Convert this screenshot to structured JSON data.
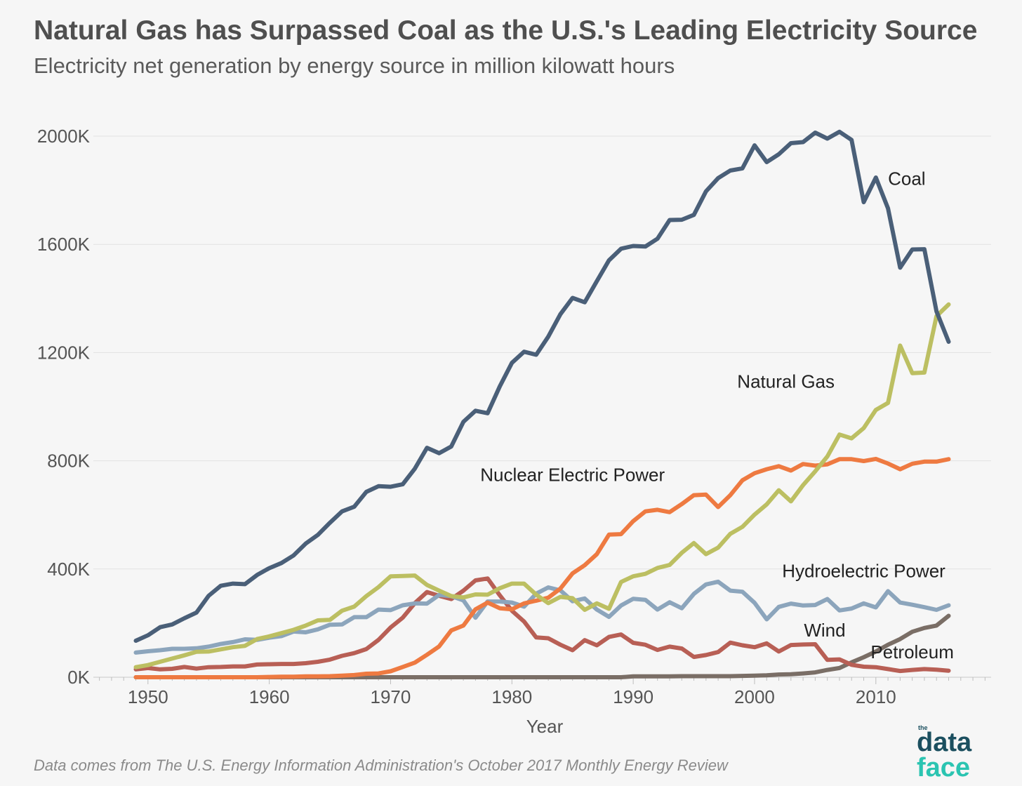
{
  "chart_data": {
    "type": "line",
    "title": "Natural Gas has Surpassed Coal as the U.S.'s Leading Electricity Source",
    "subtitle": "Electricity net generation by energy source in million kilowatt hours",
    "xlabel": "Year",
    "ylabel": "",
    "xlim": [
      1945.5,
      2019.5
    ],
    "ylim": [
      0,
      2000
    ],
    "y_unit": "K",
    "x_ticks": [
      "1950",
      "1960",
      "1970",
      "1980",
      "1990",
      "2000",
      "2010"
    ],
    "y_ticks": [
      "0K",
      "400K",
      "800K",
      "1200K",
      "1600K",
      "2000K"
    ],
    "grid": "horizontal",
    "legend": "direct labels on lines",
    "x": [
      1949,
      1950,
      1951,
      1952,
      1953,
      1954,
      1955,
      1956,
      1957,
      1958,
      1959,
      1960,
      1961,
      1962,
      1963,
      1964,
      1965,
      1966,
      1967,
      1968,
      1969,
      1970,
      1971,
      1972,
      1973,
      1974,
      1975,
      1976,
      1977,
      1978,
      1979,
      1980,
      1981,
      1982,
      1983,
      1984,
      1985,
      1986,
      1987,
      1988,
      1989,
      1990,
      1991,
      1992,
      1993,
      1994,
      1995,
      1996,
      1997,
      1998,
      1999,
      2000,
      2001,
      2002,
      2003,
      2004,
      2005,
      2006,
      2007,
      2008,
      2009,
      2010,
      2011,
      2012,
      2013,
      2014,
      2015,
      2016
    ],
    "series": [
      {
        "name": "Coal",
        "color": "#4a5f78",
        "values": [
          135,
          155,
          185,
          195,
          218,
          239,
          301,
          338,
          346,
          344,
          378,
          403,
          422,
          450,
          494,
          526,
          571,
          613,
          630,
          685,
          706,
          704,
          713,
          771,
          848,
          828,
          853,
          944,
          985,
          976,
          1075,
          1162,
          1203,
          1192,
          1259,
          1342,
          1402,
          1386,
          1464,
          1541,
          1584,
          1594,
          1592,
          1621,
          1690,
          1691,
          1709,
          1796,
          1845,
          1873,
          1881,
          1966,
          1904,
          1933,
          1974,
          1978,
          2013,
          1991,
          2016,
          1986,
          1756,
          1847,
          1733,
          1514,
          1581,
          1582,
          1352,
          1240
        ]
      },
      {
        "name": "Natural Gas",
        "color": "#bcbf62",
        "values": [
          37,
          45,
          57,
          69,
          81,
          94,
          95,
          103,
          111,
          116,
          141,
          151,
          163,
          175,
          191,
          210,
          212,
          246,
          261,
          300,
          333,
          373,
          374,
          376,
          341,
          320,
          300,
          295,
          306,
          305,
          329,
          346,
          346,
          305,
          274,
          297,
          292,
          249,
          273,
          253,
          352,
          373,
          382,
          404,
          415,
          460,
          496,
          455,
          479,
          530,
          556,
          601,
          639,
          691,
          650,
          710,
          761,
          816,
          897,
          883,
          921,
          988,
          1014,
          1226,
          1124,
          1126,
          1335,
          1378
        ]
      },
      {
        "name": "Nuclear Electric Power",
        "color": "#ee7a41",
        "values": [
          0,
          0,
          0,
          0,
          0,
          0,
          0,
          0,
          0,
          0,
          0,
          1,
          2,
          2,
          3,
          3,
          4,
          6,
          8,
          13,
          14,
          22,
          38,
          54,
          83,
          114,
          173,
          191,
          251,
          276,
          255,
          251,
          273,
          283,
          294,
          328,
          384,
          414,
          455,
          527,
          529,
          577,
          613,
          619,
          610,
          640,
          673,
          675,
          629,
          673,
          728,
          754,
          769,
          780,
          764,
          788,
          782,
          787,
          806,
          806,
          799,
          807,
          790,
          769,
          789,
          797,
          797,
          806
        ]
      },
      {
        "name": "Hydroelectric Power",
        "color": "#8ca5bc",
        "values": [
          91,
          96,
          100,
          105,
          105,
          107,
          113,
          123,
          130,
          140,
          138,
          146,
          152,
          169,
          166,
          177,
          194,
          195,
          222,
          222,
          250,
          248,
          266,
          273,
          272,
          304,
          300,
          284,
          220,
          280,
          280,
          276,
          261,
          309,
          332,
          321,
          281,
          291,
          250,
          223,
          265,
          290,
          286,
          250,
          277,
          255,
          308,
          343,
          353,
          320,
          316,
          275,
          214,
          260,
          272,
          265,
          267,
          289,
          247,
          254,
          273,
          258,
          318,
          276,
          268,
          259,
          249,
          266
        ]
      },
      {
        "name": "Wind",
        "color": "#7a6e66",
        "values": [
          0,
          0,
          0,
          0,
          0,
          0,
          0,
          0,
          0,
          0,
          0,
          0,
          0,
          0,
          0,
          0,
          0,
          0,
          0,
          0,
          0,
          0,
          0,
          0,
          0,
          0,
          0,
          0,
          0,
          0,
          0,
          0,
          0,
          0,
          0,
          0,
          0,
          0,
          0,
          0,
          0,
          3,
          3,
          3,
          3,
          4,
          4,
          4,
          4,
          4,
          5,
          6,
          7,
          10,
          11,
          14,
          18,
          27,
          34,
          55,
          74,
          95,
          120,
          141,
          168,
          182,
          191,
          227
        ]
      },
      {
        "name": "Petroleum",
        "color": "#b85f55",
        "values": [
          29,
          34,
          29,
          31,
          38,
          32,
          37,
          38,
          40,
          40,
          47,
          48,
          49,
          49,
          52,
          57,
          65,
          79,
          89,
          104,
          138,
          184,
          220,
          274,
          315,
          301,
          289,
          320,
          358,
          365,
          303,
          246,
          206,
          147,
          144,
          120,
          100,
          137,
          118,
          149,
          158,
          127,
          120,
          101,
          113,
          106,
          75,
          82,
          93,
          128,
          118,
          111,
          125,
          95,
          119,
          121,
          122,
          64,
          66,
          46,
          39,
          37,
          30,
          23,
          27,
          30,
          28,
          24
        ]
      }
    ]
  },
  "footer": {
    "source": "Data comes from The U.S. Energy Information Administration's October 2017 Monthly Energy Review",
    "brand_line1": "data",
    "brand_line2": "face",
    "brand_small": "the"
  }
}
